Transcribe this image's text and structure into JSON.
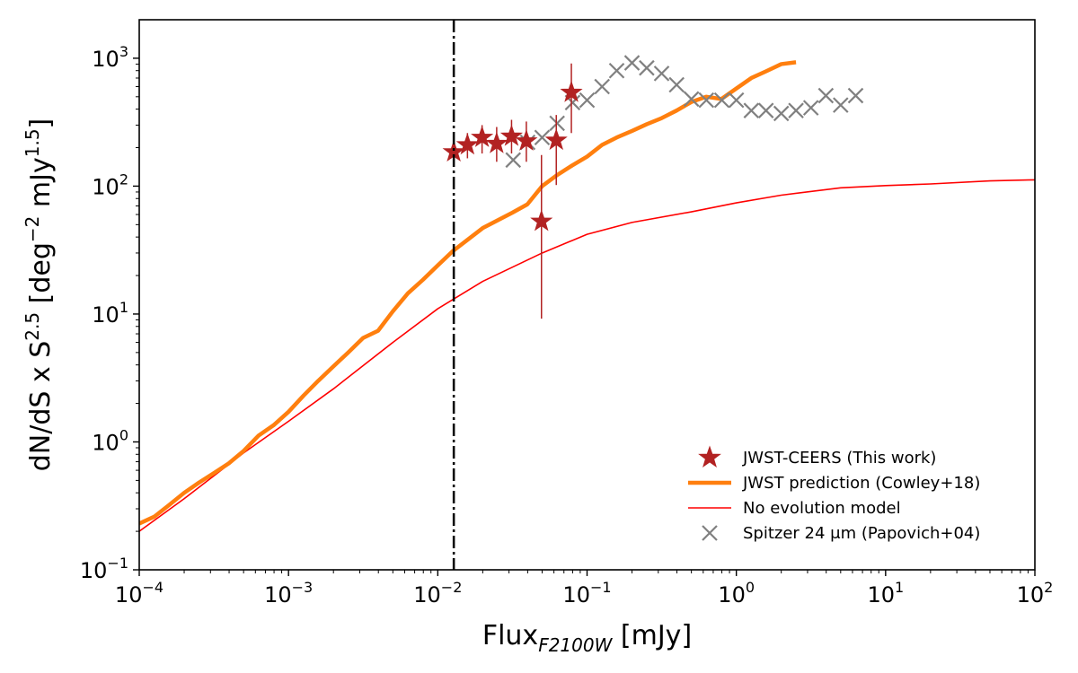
{
  "chart_data": {
    "type": "scatter",
    "x_scale": "log",
    "y_scale": "log",
    "xlim": [
      0.0001,
      100
    ],
    "ylim": [
      0.1,
      2000
    ],
    "x_ticks": [
      {
        "value": 0.0001,
        "base": "10",
        "exp": "−4"
      },
      {
        "value": 0.001,
        "base": "10",
        "exp": "−3"
      },
      {
        "value": 0.01,
        "base": "10",
        "exp": "−2"
      },
      {
        "value": 0.1,
        "base": "10",
        "exp": "−1"
      },
      {
        "value": 1,
        "base": "10",
        "exp": "0"
      },
      {
        "value": 10,
        "base": "10",
        "exp": "1"
      },
      {
        "value": 100,
        "base": "10",
        "exp": "2"
      }
    ],
    "y_ticks": [
      {
        "value": 0.1,
        "base": "10",
        "exp": "−1"
      },
      {
        "value": 1,
        "base": "10",
        "exp": "0"
      },
      {
        "value": 10,
        "base": "10",
        "exp": "1"
      },
      {
        "value": 100,
        "base": "10",
        "exp": "2"
      },
      {
        "value": 1000,
        "base": "10",
        "exp": "3"
      }
    ],
    "xlabel": {
      "main": "Flux",
      "sub": "F2100W",
      "unit": " [mJy]"
    },
    "ylabel": {
      "pre": "dN/dS x S",
      "sup1": "2.5",
      "mid": " [deg",
      "sup2": "−2",
      "mid2": " mJy",
      "sup3": "1.5",
      "post": "]"
    },
    "vline": {
      "x": 0.0128,
      "style": "dash-dot",
      "color": "#000000"
    },
    "legend_placement": "lower-right",
    "grid": false,
    "series": [
      {
        "name": "JWST-CEERS (This work)",
        "kind": "star-errorbar",
        "color": "#b22222",
        "points": [
          {
            "x": 0.0128,
            "y": 185,
            "ylo": 150,
            "yhi": 230
          },
          {
            "x": 0.0158,
            "y": 210,
            "ylo": 165,
            "yhi": 260
          },
          {
            "x": 0.0198,
            "y": 240,
            "ylo": 180,
            "yhi": 300
          },
          {
            "x": 0.0248,
            "y": 215,
            "ylo": 155,
            "yhi": 290
          },
          {
            "x": 0.0312,
            "y": 245,
            "ylo": 180,
            "yhi": 330
          },
          {
            "x": 0.0392,
            "y": 225,
            "ylo": 155,
            "yhi": 320
          },
          {
            "x": 0.0495,
            "y": 53,
            "ylo": 9.2,
            "yhi": 175
          },
          {
            "x": 0.0622,
            "y": 228,
            "ylo": 102,
            "yhi": 360
          },
          {
            "x": 0.0785,
            "y": 540,
            "ylo": 260,
            "yhi": 910
          }
        ]
      },
      {
        "name": "JWST prediction (Cowley+18)",
        "kind": "line",
        "color": "#ff7f0e",
        "width": 4.5,
        "points": [
          [
            0.0001,
            0.23
          ],
          [
            0.000126,
            0.26
          ],
          [
            0.000158,
            0.32
          ],
          [
            0.0002,
            0.4
          ],
          [
            0.000251,
            0.48
          ],
          [
            0.000316,
            0.57
          ],
          [
            0.000398,
            0.68
          ],
          [
            0.0005,
            0.85
          ],
          [
            0.00063,
            1.12
          ],
          [
            0.000794,
            1.35
          ],
          [
            0.001,
            1.72
          ],
          [
            0.00126,
            2.3
          ],
          [
            0.00158,
            3.0
          ],
          [
            0.002,
            3.9
          ],
          [
            0.00251,
            5.0
          ],
          [
            0.00316,
            6.5
          ],
          [
            0.00398,
            7.4
          ],
          [
            0.005,
            10.5
          ],
          [
            0.0063,
            14.5
          ],
          [
            0.00794,
            18.5
          ],
          [
            0.01,
            24
          ],
          [
            0.0126,
            31
          ],
          [
            0.0158,
            38
          ],
          [
            0.02,
            47
          ],
          [
            0.0251,
            54
          ],
          [
            0.0316,
            62
          ],
          [
            0.0398,
            72
          ],
          [
            0.05,
            100
          ],
          [
            0.063,
            122
          ],
          [
            0.0794,
            145
          ],
          [
            0.1,
            170
          ],
          [
            0.126,
            210
          ],
          [
            0.158,
            240
          ],
          [
            0.2,
            270
          ],
          [
            0.251,
            305
          ],
          [
            0.316,
            340
          ],
          [
            0.398,
            390
          ],
          [
            0.5,
            455
          ],
          [
            0.63,
            500
          ],
          [
            0.794,
            480
          ],
          [
            1.0,
            580
          ],
          [
            1.26,
            700
          ],
          [
            1.58,
            790
          ],
          [
            2.0,
            900
          ],
          [
            2.51,
            930
          ]
        ]
      },
      {
        "name": "No evolution model",
        "kind": "line",
        "color": "#ff0000",
        "width": 1.6,
        "points": [
          [
            0.0001,
            0.2
          ],
          [
            0.0002,
            0.36
          ],
          [
            0.0005,
            0.82
          ],
          [
            0.001,
            1.45
          ],
          [
            0.002,
            2.6
          ],
          [
            0.005,
            6.0
          ],
          [
            0.01,
            11
          ],
          [
            0.02,
            18
          ],
          [
            0.05,
            30
          ],
          [
            0.1,
            42
          ],
          [
            0.2,
            52
          ],
          [
            0.5,
            63
          ],
          [
            1,
            74
          ],
          [
            2,
            85
          ],
          [
            5,
            97
          ],
          [
            10,
            101
          ],
          [
            20,
            104
          ],
          [
            50,
            110
          ],
          [
            100,
            112
          ]
        ]
      },
      {
        "name": "Spitzer 24 μm (Papovich+04)",
        "kind": "x-marker",
        "color": "#808080",
        "points": [
          [
            0.032,
            160
          ],
          [
            0.04,
            220
          ],
          [
            0.05,
            240
          ],
          [
            0.063,
            310
          ],
          [
            0.08,
            450
          ],
          [
            0.1,
            470
          ],
          [
            0.126,
            600
          ],
          [
            0.158,
            800
          ],
          [
            0.2,
            920
          ],
          [
            0.251,
            840
          ],
          [
            0.316,
            760
          ],
          [
            0.398,
            620
          ],
          [
            0.5,
            480
          ],
          [
            0.63,
            470
          ],
          [
            0.8,
            470
          ],
          [
            1.0,
            470
          ],
          [
            1.26,
            390
          ],
          [
            1.58,
            390
          ],
          [
            2.0,
            370
          ],
          [
            2.51,
            390
          ],
          [
            3.16,
            410
          ],
          [
            3.98,
            510
          ],
          [
            5.0,
            430
          ],
          [
            6.3,
            510
          ]
        ]
      }
    ]
  }
}
